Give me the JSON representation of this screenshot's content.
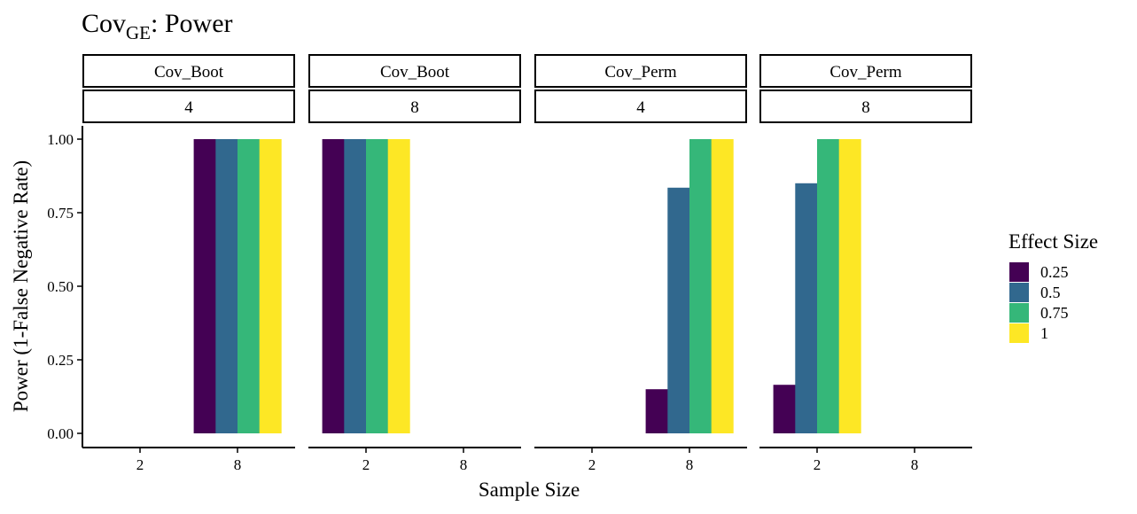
{
  "chart_data": {
    "type": "bar",
    "title": {
      "main": "Cov",
      "sub": "GE",
      "suffix": ": Power"
    },
    "xlabel": "Sample Size",
    "ylabel": "Power (1-False Negative Rate)",
    "ylim": [
      0,
      1
    ],
    "y_ticks": [
      "0.00",
      "0.25",
      "0.50",
      "0.75",
      "1.00"
    ],
    "y_tick_values": [
      0,
      0.25,
      0.5,
      0.75,
      1
    ],
    "x_categories": [
      "2",
      "8"
    ],
    "grid": false,
    "legend": {
      "title": "Effect Size",
      "placement": "right",
      "entries": [
        "0.25",
        "0.5",
        "0.75",
        "1"
      ],
      "colors": [
        "#440154",
        "#31688E",
        "#35B779",
        "#FDE725"
      ]
    },
    "panels": [
      {
        "strip_top": "Cov_Boot",
        "strip_bottom": "4",
        "categories": [
          "2",
          "8"
        ],
        "series": [
          {
            "name": "0.25",
            "values": [
              null,
              1.0
            ]
          },
          {
            "name": "0.5",
            "values": [
              null,
              1.0
            ]
          },
          {
            "name": "0.75",
            "values": [
              null,
              1.0
            ]
          },
          {
            "name": "1",
            "values": [
              null,
              1.0
            ]
          }
        ]
      },
      {
        "strip_top": "Cov_Boot",
        "strip_bottom": "8",
        "categories": [
          "2",
          "8"
        ],
        "series": [
          {
            "name": "0.25",
            "values": [
              1.0,
              null
            ]
          },
          {
            "name": "0.5",
            "values": [
              1.0,
              null
            ]
          },
          {
            "name": "0.75",
            "values": [
              1.0,
              null
            ]
          },
          {
            "name": "1",
            "values": [
              1.0,
              null
            ]
          }
        ]
      },
      {
        "strip_top": "Cov_Perm",
        "strip_bottom": "4",
        "categories": [
          "2",
          "8"
        ],
        "series": [
          {
            "name": "0.25",
            "values": [
              null,
              0.15
            ]
          },
          {
            "name": "0.5",
            "values": [
              null,
              0.835
            ]
          },
          {
            "name": "0.75",
            "values": [
              null,
              1.0
            ]
          },
          {
            "name": "1",
            "values": [
              null,
              1.0
            ]
          }
        ]
      },
      {
        "strip_top": "Cov_Perm",
        "strip_bottom": "8",
        "categories": [
          "2",
          "8"
        ],
        "series": [
          {
            "name": "0.25",
            "values": [
              0.165,
              null
            ]
          },
          {
            "name": "0.5",
            "values": [
              0.85,
              null
            ]
          },
          {
            "name": "0.75",
            "values": [
              1.0,
              null
            ]
          },
          {
            "name": "1",
            "values": [
              1.0,
              null
            ]
          }
        ]
      }
    ]
  }
}
